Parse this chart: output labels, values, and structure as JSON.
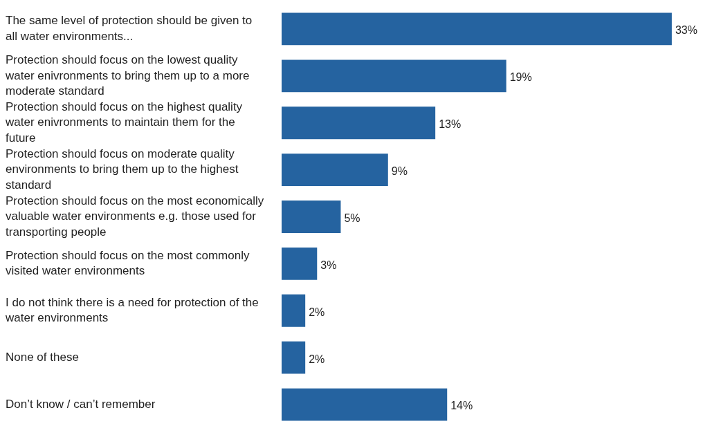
{
  "chart_data": {
    "type": "bar",
    "orientation": "horizontal",
    "categories": [
      "The same level of protection should be given to all water environments...",
      "Protection should focus on the lowest quality water enivronments to bring them up to a more moderate standard",
      "Protection should focus on the highest quality water enivronments to maintain them for the future",
      "Protection should focus on moderate quality environments to bring them up to the highest standard",
      "Protection should focus on the most economically valuable water environments e.g. those used for transporting people",
      "Protection should focus on the most commonly visited water environments",
      "I do not think there is a need for protection of the water environments",
      "None of these",
      "Don’t know / can’t remember"
    ],
    "values": [
      33,
      19,
      13,
      9,
      5,
      3,
      2,
      2,
      14
    ],
    "value_labels": [
      "33%",
      "19%",
      "13%",
      "9%",
      "5%",
      "3%",
      "2%",
      "2%",
      "14%"
    ],
    "color": "#2563a0",
    "legend": false
  }
}
